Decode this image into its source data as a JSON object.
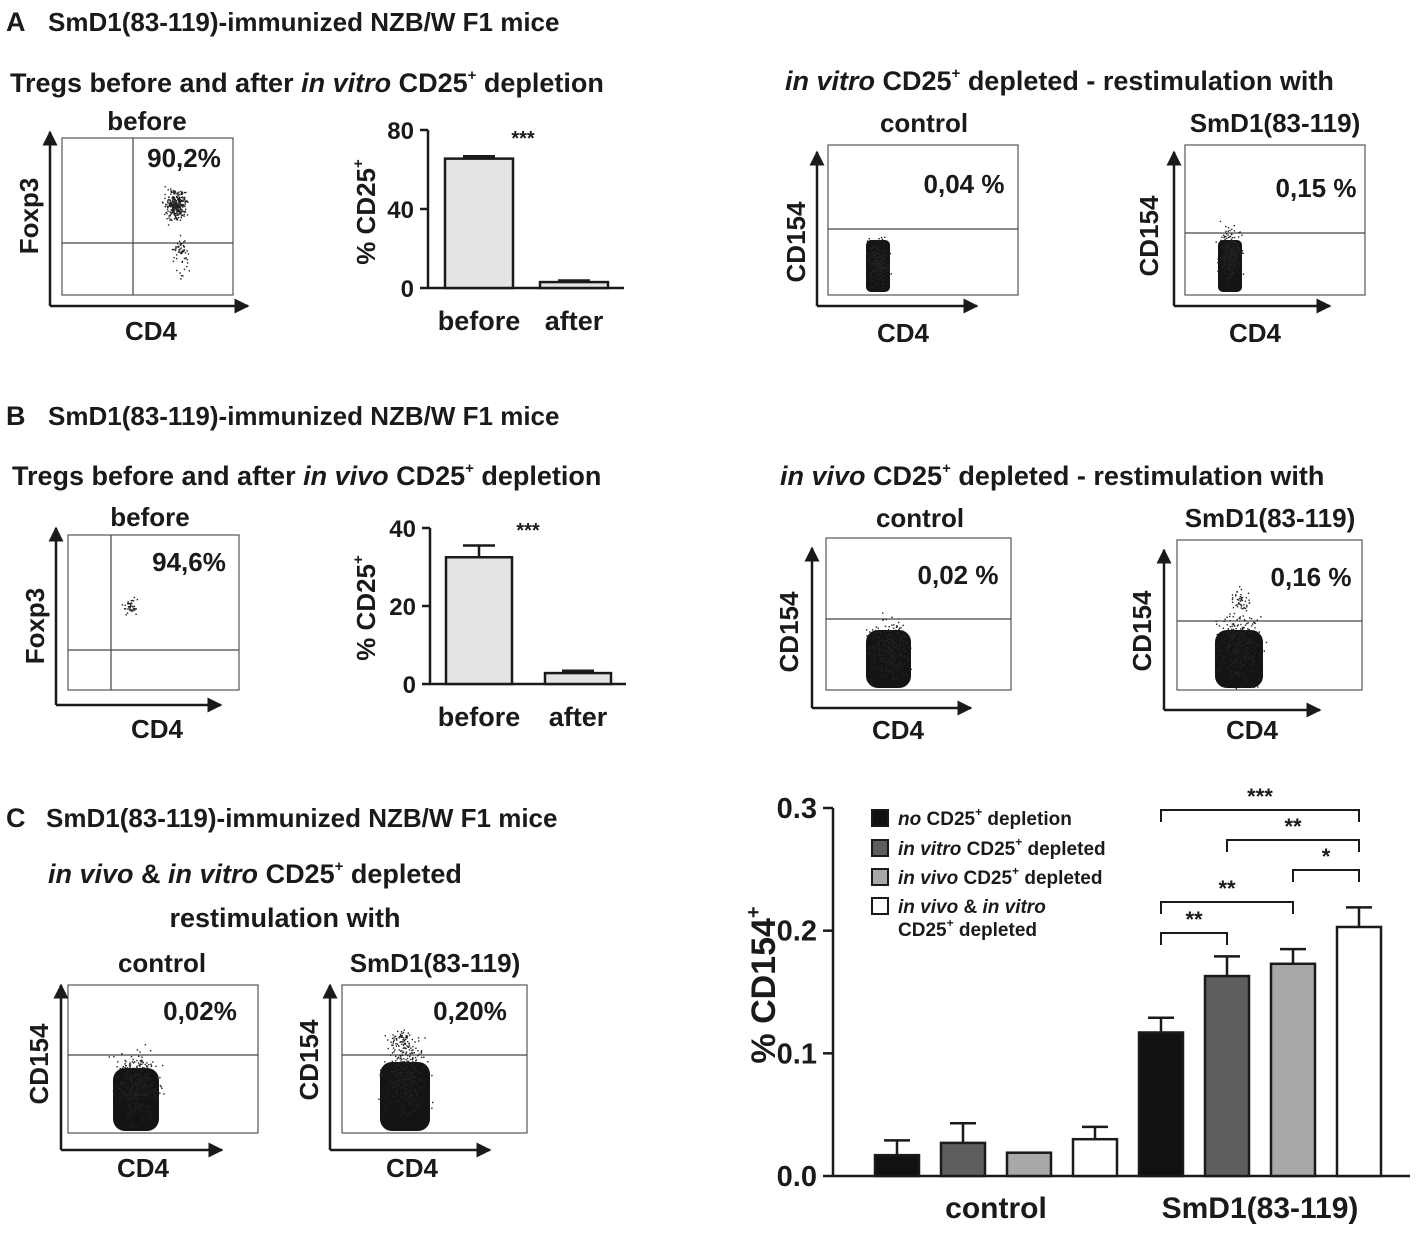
{
  "figure_panels": {
    "A": {
      "label": "A",
      "header": "SmD1(83-119)-immunized NZB/W F1 mice",
      "left_subtitle": {
        "pre": "Tregs before and after ",
        "ital": "in vitro",
        "mid": " CD25",
        "sup": "+",
        "post": " depletion"
      },
      "right_subtitle": {
        "ital": "in vitro",
        "mid": " CD25",
        "sup": "+",
        "post": " depleted - restimulation with"
      },
      "foxp3_plot": {
        "title": "before",
        "percent": "90,2%",
        "xlabel": "CD4",
        "ylabel": "Foxp3"
      },
      "cd154_control": {
        "title": "control",
        "percent": "0,04 %",
        "xlabel": "CD4",
        "ylabel": "CD154"
      },
      "cd154_smd1": {
        "title": "SmD1(83-119)",
        "percent": "0,15 %",
        "xlabel": "CD4",
        "ylabel": "CD154"
      }
    },
    "B": {
      "label": "B",
      "header": "SmD1(83-119)-immunized NZB/W F1 mice",
      "left_subtitle": {
        "pre": "Tregs before and after ",
        "ital": "in vivo",
        "mid": " CD25",
        "sup": "+",
        "post": " depletion"
      },
      "right_subtitle": {
        "ital": "in vivo",
        "mid": " CD25",
        "sup": "+",
        "post": " depleted - restimulation with"
      },
      "foxp3_plot": {
        "title": "before",
        "percent": "94,6%",
        "xlabel": "CD4",
        "ylabel": "Foxp3"
      },
      "cd154_control": {
        "title": "control",
        "percent": "0,02 %",
        "xlabel": "CD4",
        "ylabel": "CD154"
      },
      "cd154_smd1": {
        "title": "SmD1(83-119)",
        "percent": "0,16 %",
        "xlabel": "CD4",
        "ylabel": "CD154"
      }
    },
    "C": {
      "label": "C",
      "header": "SmD1(83-119)-immunized NZB/W F1 mice",
      "subtitle": {
        "ital1": "in vivo",
        "amp": " & ",
        "ital2": "in vitro",
        "mid": " CD25",
        "sup": "+",
        "post": " depleted"
      },
      "subtitle2": "restimulation with",
      "cd154_control": {
        "title": "control",
        "percent": "0,02%",
        "xlabel": "CD4",
        "ylabel": "CD154"
      },
      "cd154_smd1": {
        "title": "SmD1(83-119)",
        "percent": "0,20%",
        "xlabel": "CD4",
        "ylabel": "CD154"
      }
    }
  },
  "chart_data": [
    {
      "id": "A-bar",
      "type": "bar",
      "categories": [
        "before",
        "after"
      ],
      "values": [
        65.5,
        3
      ],
      "errors": [
        1.2,
        0.8
      ],
      "ylabel": "% CD25+",
      "ylabel_main": "% CD25",
      "ylabel_sup": "+",
      "ylim": [
        0,
        80
      ],
      "yticks": [
        0,
        40,
        80
      ],
      "significance": "***",
      "fill": "#e4e4e4"
    },
    {
      "id": "B-bar",
      "type": "bar",
      "categories": [
        "before",
        "after"
      ],
      "values": [
        32.5,
        2.8
      ],
      "errors": [
        3,
        0.6
      ],
      "ylabel": "% CD25+",
      "ylabel_main": "% CD25",
      "ylabel_sup": "+",
      "ylim": [
        0,
        40
      ],
      "yticks": [
        0,
        20,
        40
      ],
      "significance": "***",
      "fill": "#e4e4e4"
    },
    {
      "id": "C-bar",
      "type": "bar",
      "categories": [
        "control",
        "SmD1(83-119)"
      ],
      "ylabel": "% CD154+",
      "ylabel_main": "% CD154",
      "ylabel_sup": "+",
      "ylim": [
        0,
        0.3
      ],
      "yticks": [
        "0.0",
        "0.1",
        "0.2",
        "0.3"
      ],
      "series": [
        {
          "name": "no CD25+ depletion",
          "values": [
            0.017,
            0.117
          ],
          "errors": [
            0.012,
            0.012
          ],
          "color": "#111111"
        },
        {
          "name": "in vitro CD25+ depleted",
          "values": [
            0.027,
            0.163
          ],
          "errors": [
            0.016,
            0.016
          ],
          "color": "#5e5e5e"
        },
        {
          "name": "in vivo CD25+ depleted",
          "values": [
            0.019,
            0.173
          ],
          "errors": [
            0.0,
            0.012
          ],
          "color": "#a8a8a8"
        },
        {
          "name": "in vivo & in vitro CD25+ depleted",
          "values": [
            0.03,
            0.203
          ],
          "errors": [
            0.01,
            0.016
          ],
          "color": "#ffffff"
        }
      ],
      "legend": [
        {
          "ital": "no",
          "rest": " CD25",
          "sup": "+",
          "post": " depletion"
        },
        {
          "ital": "in vitro",
          "rest": " CD25",
          "sup": "+",
          "post": " depleted"
        },
        {
          "ital": "in vivo",
          "rest": " CD25",
          "sup": "+",
          "post": " depleted"
        },
        {
          "ital": "in vivo",
          "rest": " & ",
          "ital2": "in vitro",
          "line2": "CD25",
          "sup": "+",
          "post": " depleted"
        }
      ],
      "legend_position": "top-left",
      "comparisons": [
        {
          "from": 0,
          "to": 1,
          "label": "**"
        },
        {
          "from": 0,
          "to": 2,
          "label": "**"
        },
        {
          "from": 2,
          "to": 3,
          "label": "*"
        },
        {
          "from": 1,
          "to": 3,
          "label": "**"
        },
        {
          "from": 0,
          "to": 3,
          "label": "***"
        }
      ]
    }
  ]
}
